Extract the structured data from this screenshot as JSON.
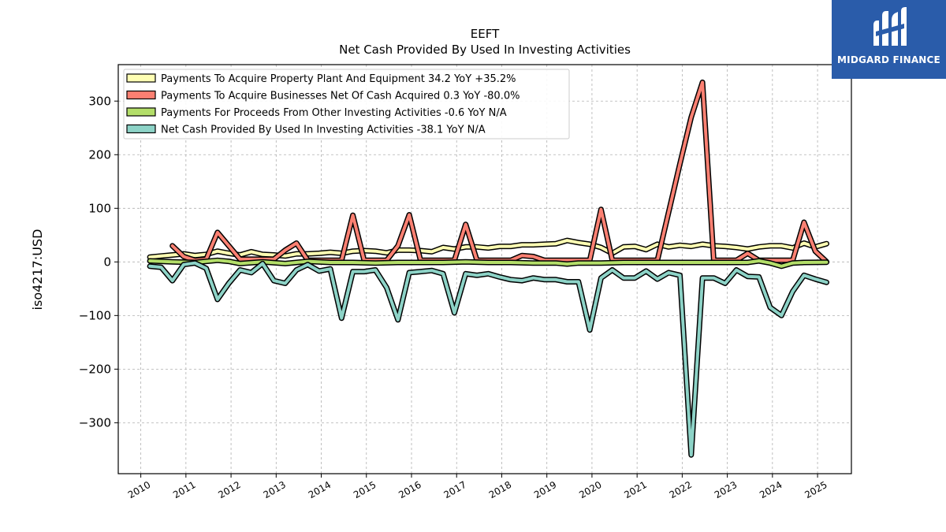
{
  "brand": {
    "name": "MIDGARD FINANCE",
    "bg_color": "#2a5caa"
  },
  "chart_data": {
    "type": "line",
    "title": "EEFT",
    "subtitle": "Net Cash Provided By Used In Investing Activities",
    "xlabel": "",
    "ylabel": "iso4217:USD",
    "xlim": [
      2009.5,
      2025.75
    ],
    "ylim": [
      -395,
      368
    ],
    "x_ticks": [
      2010,
      2011,
      2012,
      2013,
      2014,
      2015,
      2016,
      2017,
      2018,
      2019,
      2020,
      2021,
      2022,
      2023,
      2024,
      2025
    ],
    "y_ticks": [
      300,
      200,
      100,
      0,
      -100,
      -200,
      -300
    ],
    "y_tick_labels": [
      "300",
      "200",
      "100",
      "0",
      "−100",
      "−200",
      "−300"
    ],
    "grid": true,
    "legend_position": "top-left",
    "series": [
      {
        "name": "Payments To Acquire Property Plant And Equipment  34.2 YoY +35.2%",
        "color": "#ffffb3",
        "points": [
          [
            2010.2,
            9
          ],
          [
            2010.45,
            11
          ],
          [
            2010.7,
            13
          ],
          [
            2010.95,
            15
          ],
          [
            2011.2,
            12
          ],
          [
            2011.45,
            14
          ],
          [
            2011.7,
            20
          ],
          [
            2011.95,
            16
          ],
          [
            2012.2,
            13
          ],
          [
            2012.45,
            19
          ],
          [
            2012.7,
            14
          ],
          [
            2012.95,
            13
          ],
          [
            2013.2,
            11
          ],
          [
            2013.45,
            15
          ],
          [
            2013.7,
            15
          ],
          [
            2013.95,
            16
          ],
          [
            2014.2,
            18
          ],
          [
            2014.45,
            16
          ],
          [
            2014.7,
            20
          ],
          [
            2014.95,
            21
          ],
          [
            2015.2,
            20
          ],
          [
            2015.45,
            17
          ],
          [
            2015.7,
            22
          ],
          [
            2015.95,
            22
          ],
          [
            2016.2,
            21
          ],
          [
            2016.45,
            19
          ],
          [
            2016.7,
            27
          ],
          [
            2016.95,
            24
          ],
          [
            2017.2,
            28
          ],
          [
            2017.45,
            28
          ],
          [
            2017.7,
            26
          ],
          [
            2017.95,
            29
          ],
          [
            2018.2,
            29
          ],
          [
            2018.45,
            32
          ],
          [
            2018.7,
            32
          ],
          [
            2018.95,
            33
          ],
          [
            2019.2,
            34
          ],
          [
            2019.45,
            40
          ],
          [
            2019.7,
            36
          ],
          [
            2019.95,
            33
          ],
          [
            2020.2,
            27
          ],
          [
            2020.45,
            16
          ],
          [
            2020.7,
            28
          ],
          [
            2020.95,
            29
          ],
          [
            2021.2,
            23
          ],
          [
            2021.45,
            33
          ],
          [
            2021.7,
            28
          ],
          [
            2021.95,
            31
          ],
          [
            2022.2,
            29
          ],
          [
            2022.45,
            33
          ],
          [
            2022.7,
            30
          ],
          [
            2022.95,
            29
          ],
          [
            2023.2,
            27
          ],
          [
            2023.45,
            24
          ],
          [
            2023.7,
            28
          ],
          [
            2023.95,
            30
          ],
          [
            2024.2,
            30
          ],
          [
            2024.45,
            26
          ],
          [
            2024.7,
            35
          ],
          [
            2024.95,
            28
          ],
          [
            2025.2,
            34
          ]
        ]
      },
      {
        "name": "Payments To Acquire Businesses Net Of Cash Acquired  0.3 YoY -80.0%",
        "color": "#fb8072",
        "points": [
          [
            2010.7,
            30
          ],
          [
            2010.95,
            10
          ],
          [
            2011.2,
            3
          ],
          [
            2011.45,
            5
          ],
          [
            2011.7,
            55
          ],
          [
            2011.95,
            30
          ],
          [
            2012.2,
            5
          ],
          [
            2012.45,
            5
          ],
          [
            2012.7,
            5
          ],
          [
            2012.95,
            5
          ],
          [
            2013.2,
            22
          ],
          [
            2013.45,
            35
          ],
          [
            2013.7,
            3
          ],
          [
            2013.95,
            3
          ],
          [
            2014.2,
            3
          ],
          [
            2014.45,
            3
          ],
          [
            2014.7,
            87
          ],
          [
            2014.95,
            3
          ],
          [
            2015.2,
            3
          ],
          [
            2015.45,
            3
          ],
          [
            2015.7,
            30
          ],
          [
            2015.95,
            88
          ],
          [
            2016.2,
            3
          ],
          [
            2016.45,
            3
          ],
          [
            2016.7,
            3
          ],
          [
            2016.95,
            3
          ],
          [
            2017.2,
            70
          ],
          [
            2017.45,
            3
          ],
          [
            2017.7,
            3
          ],
          [
            2017.95,
            3
          ],
          [
            2018.2,
            3
          ],
          [
            2018.45,
            12
          ],
          [
            2018.7,
            10
          ],
          [
            2018.95,
            3
          ],
          [
            2019.2,
            3
          ],
          [
            2019.45,
            3
          ],
          [
            2019.7,
            3
          ],
          [
            2019.95,
            3
          ],
          [
            2020.2,
            98
          ],
          [
            2020.45,
            3
          ],
          [
            2020.7,
            3
          ],
          [
            2020.95,
            3
          ],
          [
            2021.2,
            3
          ],
          [
            2021.45,
            3
          ],
          [
            2021.7,
            93
          ],
          [
            2021.95,
            183
          ],
          [
            2022.2,
            270
          ],
          [
            2022.45,
            335
          ],
          [
            2022.7,
            3
          ],
          [
            2022.95,
            3
          ],
          [
            2023.2,
            3
          ],
          [
            2023.45,
            16
          ],
          [
            2023.7,
            3
          ],
          [
            2023.95,
            3
          ],
          [
            2024.2,
            3
          ],
          [
            2024.45,
            3
          ],
          [
            2024.7,
            74
          ],
          [
            2024.95,
            20
          ],
          [
            2025.2,
            0.3
          ]
        ]
      },
      {
        "name": "Payments For Proceeds From Other Investing Activities  -0.6 YoY N/A",
        "color": "#b3de69",
        "points": [
          [
            2010.2,
            2
          ],
          [
            2010.7,
            0
          ],
          [
            2011.2,
            -1
          ],
          [
            2011.7,
            3
          ],
          [
            2011.95,
            1
          ],
          [
            2012.2,
            -3
          ],
          [
            2012.7,
            0
          ],
          [
            2013.2,
            -3
          ],
          [
            2013.7,
            1
          ],
          [
            2014.2,
            -1
          ],
          [
            2014.7,
            -1
          ],
          [
            2015.2,
            -2
          ],
          [
            2015.7,
            -1
          ],
          [
            2016.2,
            -1
          ],
          [
            2016.7,
            -1
          ],
          [
            2017.2,
            0
          ],
          [
            2017.7,
            -1
          ],
          [
            2018.2,
            -1
          ],
          [
            2018.7,
            -2
          ],
          [
            2019.2,
            -2
          ],
          [
            2019.45,
            -4
          ],
          [
            2019.7,
            -2
          ],
          [
            2020.2,
            -2
          ],
          [
            2020.7,
            -1
          ],
          [
            2021.2,
            -1
          ],
          [
            2021.7,
            -1
          ],
          [
            2022.2,
            -1
          ],
          [
            2022.7,
            -1
          ],
          [
            2023.2,
            -1
          ],
          [
            2023.45,
            -1
          ],
          [
            2023.7,
            2
          ],
          [
            2023.95,
            -2
          ],
          [
            2024.2,
            -8
          ],
          [
            2024.45,
            -2
          ],
          [
            2024.7,
            -1
          ],
          [
            2025.2,
            -0.6
          ]
        ]
      },
      {
        "name": "Net Cash Provided By Used In Investing Activities  -38.1 YoY N/A",
        "color": "#8dd3c7",
        "points": [
          [
            2010.2,
            -8
          ],
          [
            2010.45,
            -10
          ],
          [
            2010.7,
            -35
          ],
          [
            2010.95,
            -5
          ],
          [
            2011.2,
            -2
          ],
          [
            2011.45,
            -12
          ],
          [
            2011.7,
            -70
          ],
          [
            2011.95,
            -40
          ],
          [
            2012.2,
            -15
          ],
          [
            2012.45,
            -20
          ],
          [
            2012.7,
            -3
          ],
          [
            2012.95,
            -35
          ],
          [
            2013.2,
            -40
          ],
          [
            2013.45,
            -15
          ],
          [
            2013.7,
            -5
          ],
          [
            2013.95,
            -17
          ],
          [
            2014.2,
            -13
          ],
          [
            2014.45,
            -105
          ],
          [
            2014.7,
            -18
          ],
          [
            2014.95,
            -18
          ],
          [
            2015.2,
            -15
          ],
          [
            2015.45,
            -48
          ],
          [
            2015.7,
            -108
          ],
          [
            2015.95,
            -20
          ],
          [
            2016.2,
            -18
          ],
          [
            2016.45,
            -16
          ],
          [
            2016.7,
            -22
          ],
          [
            2016.95,
            -95
          ],
          [
            2017.2,
            -22
          ],
          [
            2017.45,
            -25
          ],
          [
            2017.7,
            -22
          ],
          [
            2017.95,
            -28
          ],
          [
            2018.2,
            -33
          ],
          [
            2018.45,
            -35
          ],
          [
            2018.7,
            -30
          ],
          [
            2018.95,
            -33
          ],
          [
            2019.2,
            -33
          ],
          [
            2019.45,
            -37
          ],
          [
            2019.7,
            -37
          ],
          [
            2019.95,
            -127
          ],
          [
            2020.2,
            -30
          ],
          [
            2020.45,
            -15
          ],
          [
            2020.7,
            -30
          ],
          [
            2020.95,
            -30
          ],
          [
            2021.2,
            -17
          ],
          [
            2021.45,
            -32
          ],
          [
            2021.7,
            -20
          ],
          [
            2021.95,
            -25
          ],
          [
            2022.2,
            -360
          ],
          [
            2022.45,
            -30
          ],
          [
            2022.7,
            -30
          ],
          [
            2022.95,
            -40
          ],
          [
            2023.2,
            -15
          ],
          [
            2023.45,
            -27
          ],
          [
            2023.7,
            -28
          ],
          [
            2023.95,
            -85
          ],
          [
            2024.2,
            -100
          ],
          [
            2024.45,
            -55
          ],
          [
            2024.7,
            -25
          ],
          [
            2024.95,
            -32
          ],
          [
            2025.2,
            -38
          ]
        ]
      }
    ]
  }
}
